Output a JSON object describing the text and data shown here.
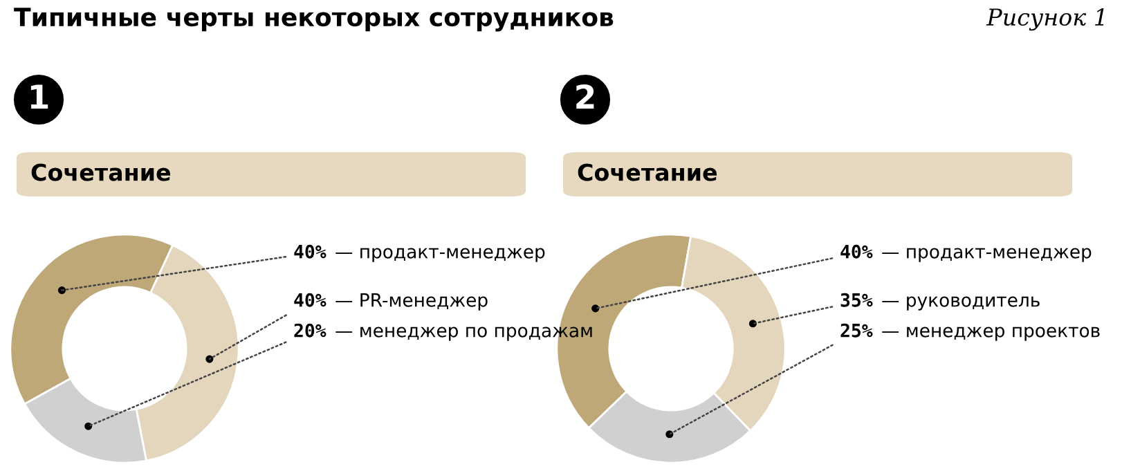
{
  "chart_data": [
    {
      "type": "donut",
      "title": "Типичные черты некоторых сотрудников",
      "subtitle": "Сочетание",
      "annotations": [
        "Рисунок 1",
        "1"
      ],
      "categories": [
        "— продакт-менеджер",
        "— PR-менеджер",
        "— менеджер по продажам"
      ],
      "values": [
        40,
        40,
        20
      ],
      "value_labels": [
        "40%",
        "40%",
        "20%"
      ],
      "colors": [
        "#bea878",
        "#e3d6bc",
        "#d0d0d0"
      ]
    },
    {
      "type": "donut",
      "subtitle": "Сочетание",
      "annotations": [
        "2"
      ],
      "categories": [
        "— продакт-менеджер",
        "— руководитель",
        "— менеджер проектов"
      ],
      "values": [
        40,
        35,
        25
      ],
      "value_labels": [
        "40%",
        "35%",
        "25%"
      ],
      "colors": [
        "#bea878",
        "#e3d6bc",
        "#d0d0d0"
      ]
    }
  ]
}
